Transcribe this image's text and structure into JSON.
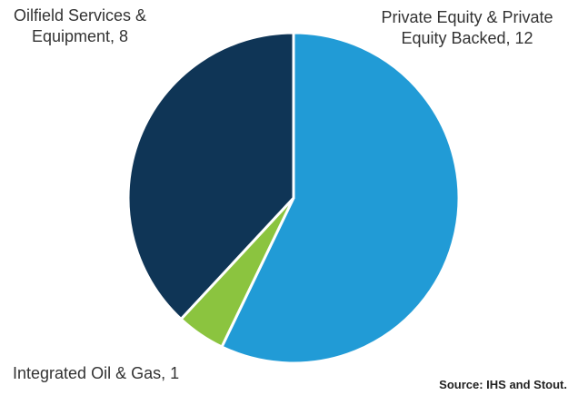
{
  "chart_data": {
    "type": "pie",
    "title": "",
    "slices": [
      {
        "label": "Private Equity & Private Equity Backed",
        "value": 12,
        "display": "Private Equity & Private Equity Backed, 12",
        "color": "#219bd6"
      },
      {
        "label": "Integrated Oil & Gas",
        "value": 1,
        "display": "Integrated Oil & Gas, 1",
        "color": "#8bc43f"
      },
      {
        "label": "Oilfield Services & Equipment",
        "value": 8,
        "display": "Oilfield Services & Equipment, 8",
        "color": "#0f3556"
      }
    ],
    "start_angle": "12 o'clock",
    "direction": "clockwise",
    "legend": "none"
  },
  "source": "Source: IHS and Stout."
}
